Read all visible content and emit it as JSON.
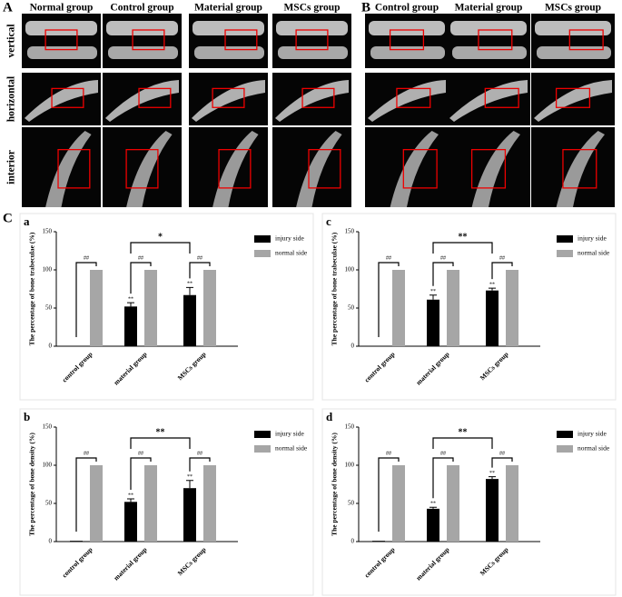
{
  "figure": {
    "panel_a": {
      "label": "A",
      "columns": [
        "Normal group",
        "Control group",
        "Material group",
        "MSCs group"
      ],
      "rows": [
        "vertical",
        "horizontal",
        "interior"
      ]
    },
    "panel_b": {
      "label": "B",
      "columns": [
        "Control group",
        "Material group",
        "MSCs group"
      ]
    },
    "panel_c": {
      "label": "C"
    }
  },
  "chart_data": [
    {
      "type": "bar",
      "title": "a",
      "ylabel": "The percentage of bone trabeculae (%)",
      "categories": [
        "control group",
        "material group",
        "MSCs group"
      ],
      "series": [
        {
          "name": "injury side",
          "color": "#000000",
          "values": [
            0,
            52,
            67
          ],
          "errors": [
            0,
            5,
            10
          ]
        },
        {
          "name": "normal side",
          "color": "#a6a6a6",
          "values": [
            100,
            100,
            100
          ]
        }
      ],
      "ylim": [
        0,
        150
      ],
      "yticks": [
        0,
        50,
        100,
        150
      ],
      "pair_labels": [
        "##",
        "##",
        "##"
      ],
      "injury_labels": [
        null,
        "**",
        "**"
      ],
      "bracket_label": "*"
    },
    {
      "type": "bar",
      "title": "c",
      "ylabel": "The percentage of bone trabeculae (%)",
      "categories": [
        "control group",
        "material group",
        "MSCs group"
      ],
      "series": [
        {
          "name": "injury side",
          "color": "#000000",
          "values": [
            0,
            61,
            73
          ],
          "errors": [
            0,
            6,
            3
          ]
        },
        {
          "name": "normal side",
          "color": "#a6a6a6",
          "values": [
            100,
            100,
            100
          ]
        }
      ],
      "ylim": [
        0,
        150
      ],
      "yticks": [
        0,
        50,
        100,
        150
      ],
      "pair_labels": [
        "##",
        "##",
        "##"
      ],
      "injury_labels": [
        null,
        "**",
        "**"
      ],
      "bracket_label": "**"
    },
    {
      "type": "bar",
      "title": "b",
      "ylabel": "The percentage of bone density (%)",
      "categories": [
        "control group",
        "material group",
        "MSCs group"
      ],
      "series": [
        {
          "name": "injury side",
          "color": "#000000",
          "values": [
            1,
            52,
            70
          ],
          "errors": [
            0,
            4,
            10
          ]
        },
        {
          "name": "normal side",
          "color": "#a6a6a6",
          "values": [
            100,
            100,
            100
          ]
        }
      ],
      "ylim": [
        0,
        150
      ],
      "yticks": [
        0,
        50,
        100,
        150
      ],
      "pair_labels": [
        "##",
        "##",
        "##"
      ],
      "injury_labels": [
        null,
        "**",
        "**"
      ],
      "bracket_label": "**"
    },
    {
      "type": "bar",
      "title": "d",
      "ylabel": "The percentage of bone density (%)",
      "categories": [
        "control group",
        "material group",
        "MSCs group"
      ],
      "series": [
        {
          "name": "injury side",
          "color": "#000000",
          "values": [
            1,
            43,
            82
          ],
          "errors": [
            0,
            2,
            3
          ]
        },
        {
          "name": "normal side",
          "color": "#a6a6a6",
          "values": [
            100,
            100,
            100
          ]
        }
      ],
      "ylim": [
        0,
        150
      ],
      "yticks": [
        0,
        50,
        100,
        150
      ],
      "pair_labels": [
        "##",
        "##",
        "##"
      ],
      "injury_labels": [
        null,
        "**",
        "**"
      ],
      "bracket_label": "**"
    }
  ]
}
